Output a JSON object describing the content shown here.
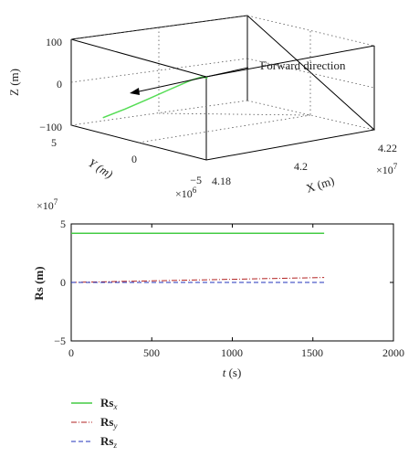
{
  "chart_data": [
    {
      "type": "line",
      "projection": "3d",
      "annotation": "Forward direction",
      "xlabel": "X (m)",
      "ylabel": "Y (m)",
      "zlabel": "Z (m)",
      "x_ticks": [
        "4.18",
        "4.2",
        "4.22"
      ],
      "x_exponent": "×10",
      "x_exponent_power": "7",
      "y_ticks": [
        "5",
        "0",
        "−5"
      ],
      "y_exponent": "×10",
      "y_exponent_power": "6",
      "z_ticks": [
        "100",
        "0",
        "−100"
      ],
      "xlim": [
        41800000,
        42200000
      ],
      "ylim": [
        -5000000,
        5000000
      ],
      "zlim": [
        -100,
        100
      ],
      "grid": "dotted",
      "series": [
        {
          "color": "#55dd55",
          "points": [
            {
              "x": 41840000,
              "y": 3900000,
              "z": -80
            },
            {
              "x": 41880000,
              "y": 3500000,
              "z": -63
            },
            {
              "x": 41920000,
              "y": 3100000,
              "z": -44
            },
            {
              "x": 41960000,
              "y": 2700000,
              "z": -24
            },
            {
              "x": 42000000,
              "y": 2350000,
              "z": -6
            },
            {
              "x": 42020000,
              "y": 2170000,
              "z": 0
            },
            {
              "x": 42030000,
              "y": 2060000,
              "z": -4
            }
          ]
        }
      ]
    },
    {
      "type": "line",
      "xlabel_var": "t",
      "xlabel_unit": " (s)",
      "ylabel": "Rs (m)",
      "y_exponent": "×10",
      "y_exponent_power": "7",
      "xlim": [
        0,
        2000
      ],
      "ylim": [
        -5,
        5
      ],
      "x_ticks": [
        "0",
        "500",
        "1000",
        "1500",
        "2000"
      ],
      "y_ticks": [
        "5",
        "0",
        "−5"
      ],
      "legend": "bottom-left, below axes",
      "series": [
        {
          "name": "Rs",
          "subscript": "x",
          "color": "#44cc44",
          "dash": "solid",
          "x": [
            0,
            1570
          ],
          "y": [
            4.2,
            4.2
          ]
        },
        {
          "name": "Rs",
          "subscript": "y",
          "color": "#b22222",
          "dash": "dashdot",
          "x": [
            0,
            1570
          ],
          "y": [
            0.0,
            0.42
          ]
        },
        {
          "name": "Rs",
          "subscript": "z",
          "color": "#2233bb",
          "dash": "dashed",
          "x": [
            0,
            1570
          ],
          "y": [
            0.0,
            0.0
          ]
        }
      ]
    }
  ]
}
